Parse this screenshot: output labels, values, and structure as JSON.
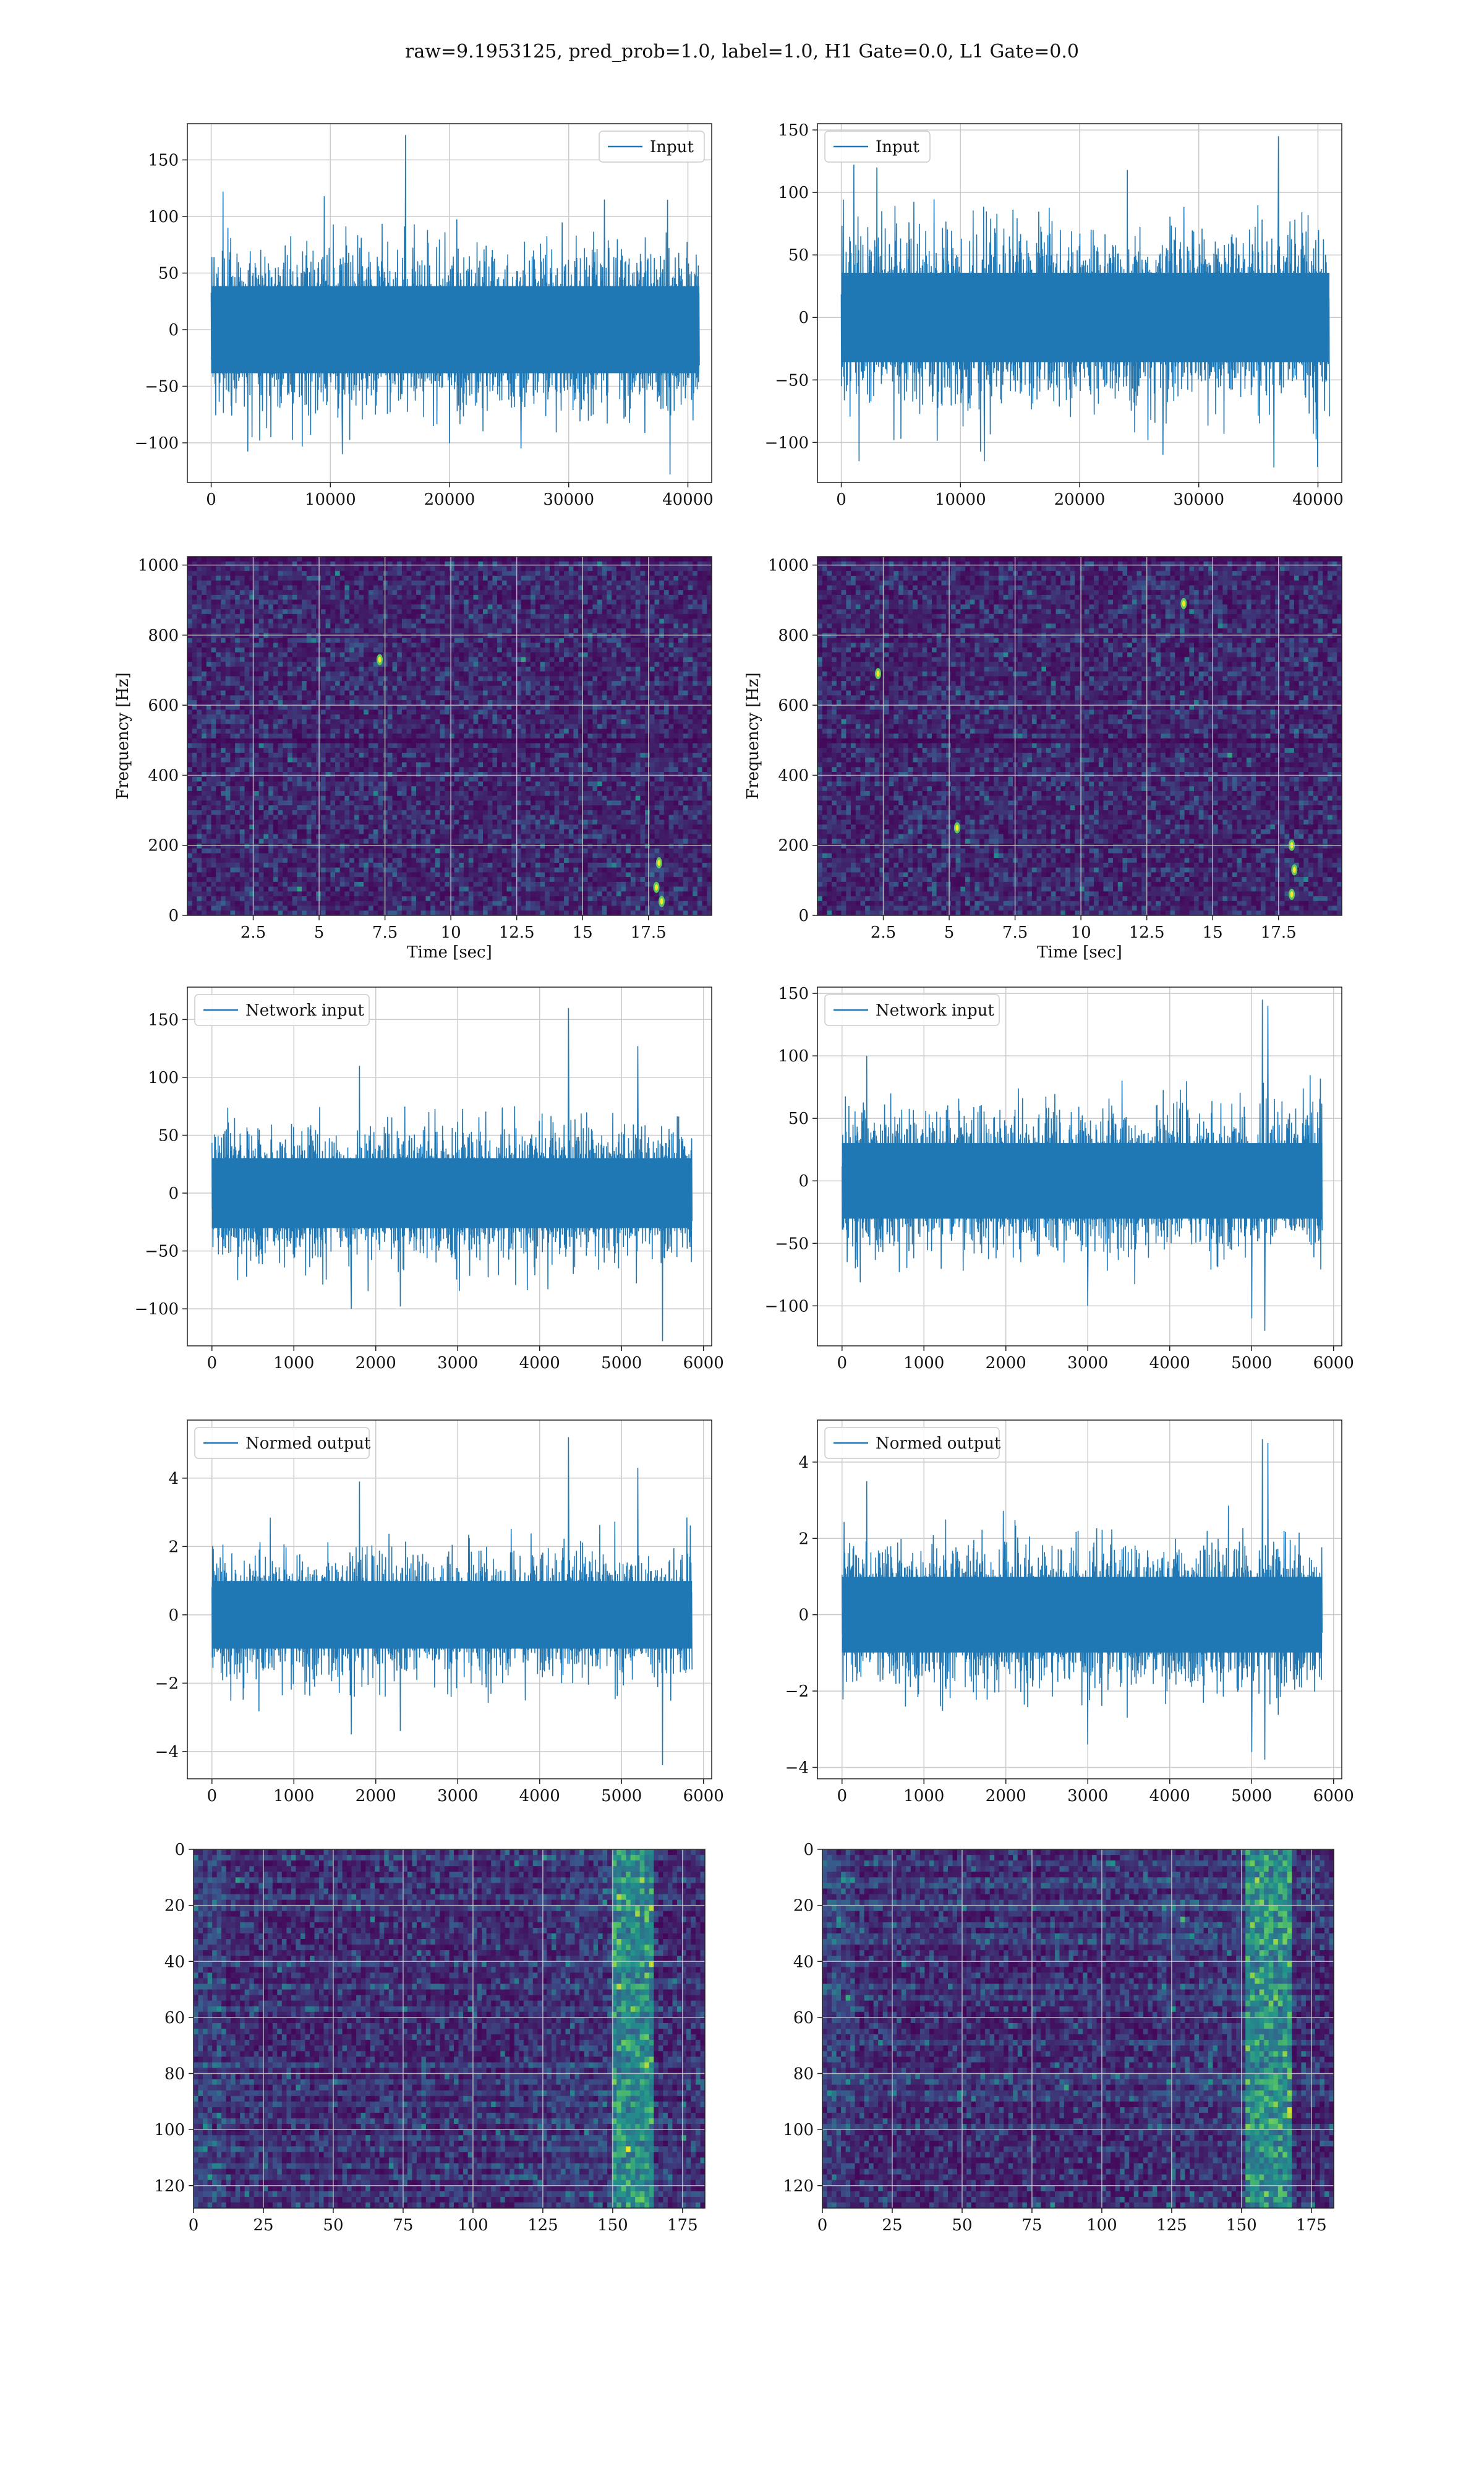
{
  "suptitle": "raw=9.1953125, pred_prob=1.0, label=1.0, H1 Gate=0.0, L1 Gate=0.0",
  "colors": {
    "line": "#1f77b4",
    "viridis_dark": "#440154",
    "viridis_mid": "#3b528b",
    "viridis_teal": "#21918c",
    "viridis_green": "#5ec962",
    "viridis_yellow": "#fde725",
    "grid": "#cccccc"
  },
  "chart_data": [
    {
      "id": "r1c1",
      "type": "line",
      "title": "",
      "xlabel": "",
      "ylabel": "",
      "legend": "Input",
      "legend_loc": "upper right",
      "xlim": [
        -2000,
        42000
      ],
      "ylim": [
        -135,
        182
      ],
      "xticks": [
        0,
        10000,
        20000,
        30000,
        40000
      ],
      "yticks": [
        -100,
        -50,
        0,
        50,
        100,
        150
      ],
      "series": [
        {
          "name": "Input",
          "x_range": [
            0,
            40960
          ],
          "typical_amplitude": 70,
          "spikes": [
            [
              16300,
              172
            ],
            [
              38500,
              -128
            ],
            [
              5000,
              -95
            ],
            [
              11000,
              -110
            ],
            [
              26000,
              -105
            ],
            [
              1000,
              122
            ],
            [
              9500,
              118
            ],
            [
              33000,
              115
            ]
          ]
        }
      ]
    },
    {
      "id": "r1c2",
      "type": "line",
      "title": "",
      "xlabel": "",
      "ylabel": "",
      "legend": "Input",
      "legend_loc": "upper left",
      "xlim": [
        -2000,
        42000
      ],
      "ylim": [
        -132,
        155
      ],
      "xticks": [
        0,
        10000,
        20000,
        30000,
        40000
      ],
      "yticks": [
        -100,
        -50,
        0,
        50,
        100,
        150
      ],
      "series": [
        {
          "name": "Input",
          "x_range": [
            0,
            40960
          ],
          "typical_amplitude": 65,
          "spikes": [
            [
              36700,
              145
            ],
            [
              36300,
              -120
            ],
            [
              1500,
              -115
            ],
            [
              12000,
              -115
            ],
            [
              27000,
              -110
            ],
            [
              3000,
              120
            ],
            [
              24000,
              118
            ]
          ]
        }
      ]
    },
    {
      "id": "r2c1",
      "type": "heatmap",
      "title": "",
      "xlabel": "Time [sec]",
      "ylabel": "Frequency [Hz]",
      "xlim": [
        0,
        19.9
      ],
      "ylim": [
        0,
        1024
      ],
      "xticks": [
        2.5,
        5.0,
        7.5,
        10.0,
        12.5,
        15.0,
        17.5
      ],
      "yticks": [
        0,
        200,
        400,
        600,
        800,
        1000
      ],
      "hot_spots": [
        [
          17.8,
          80
        ],
        [
          17.9,
          150
        ],
        [
          18.0,
          40
        ],
        [
          7.3,
          730
        ]
      ]
    },
    {
      "id": "r2c2",
      "type": "heatmap",
      "title": "",
      "xlabel": "Time [sec]",
      "ylabel": "Frequency [Hz]",
      "xlim": [
        0,
        19.9
      ],
      "ylim": [
        0,
        1024
      ],
      "xticks": [
        2.5,
        5.0,
        7.5,
        10.0,
        12.5,
        15.0,
        17.5
      ],
      "yticks": [
        0,
        200,
        400,
        600,
        800,
        1000
      ],
      "hot_spots": [
        [
          18.0,
          60
        ],
        [
          18.1,
          130
        ],
        [
          18.0,
          200
        ],
        [
          13.9,
          890
        ],
        [
          2.3,
          690
        ],
        [
          5.3,
          250
        ]
      ]
    },
    {
      "id": "r3c1",
      "type": "line",
      "title": "",
      "xlabel": "",
      "ylabel": "",
      "legend": "Network input",
      "legend_loc": "upper left",
      "xlim": [
        -300,
        6100
      ],
      "ylim": [
        -132,
        178
      ],
      "xticks": [
        0,
        1000,
        2000,
        3000,
        4000,
        5000,
        6000
      ],
      "yticks": [
        -100,
        -50,
        0,
        50,
        100,
        150
      ],
      "series": [
        {
          "name": "Network input",
          "x_range": [
            0,
            5860
          ],
          "typical_amplitude": 55,
          "spikes": [
            [
              4350,
              160
            ],
            [
              5200,
              127
            ],
            [
              5500,
              -128
            ],
            [
              1800,
              110
            ],
            [
              1700,
              -100
            ],
            [
              2300,
              -98
            ]
          ]
        }
      ]
    },
    {
      "id": "r3c2",
      "type": "line",
      "title": "",
      "xlabel": "",
      "ylabel": "",
      "legend": "Network input",
      "legend_loc": "upper left",
      "xlim": [
        -300,
        6100
      ],
      "ylim": [
        -132,
        155
      ],
      "xticks": [
        0,
        1000,
        2000,
        3000,
        4000,
        5000,
        6000
      ],
      "yticks": [
        -100,
        -50,
        0,
        50,
        100,
        150
      ],
      "series": [
        {
          "name": "Network input",
          "x_range": [
            0,
            5860
          ],
          "typical_amplitude": 55,
          "spikes": [
            [
              5130,
              145
            ],
            [
              5200,
              140
            ],
            [
              5160,
              -120
            ],
            [
              5000,
              -110
            ],
            [
              300,
              100
            ],
            [
              3000,
              -100
            ]
          ]
        }
      ]
    },
    {
      "id": "r4c1",
      "type": "line",
      "title": "",
      "xlabel": "",
      "ylabel": "",
      "legend": "Normed output",
      "legend_loc": "upper left",
      "xlim": [
        -300,
        6100
      ],
      "ylim": [
        -4.8,
        5.7
      ],
      "xticks": [
        0,
        1000,
        2000,
        3000,
        4000,
        5000,
        6000
      ],
      "yticks": [
        -4,
        -2,
        0,
        2,
        4
      ],
      "series": [
        {
          "name": "Normed output",
          "x_range": [
            0,
            5860
          ],
          "typical_amplitude": 1.8,
          "spikes": [
            [
              4350,
              5.2
            ],
            [
              5200,
              4.3
            ],
            [
              5500,
              -4.4
            ],
            [
              1800,
              3.9
            ],
            [
              1700,
              -3.5
            ],
            [
              2300,
              -3.4
            ]
          ]
        }
      ]
    },
    {
      "id": "r4c2",
      "type": "line",
      "title": "",
      "xlabel": "",
      "ylabel": "",
      "legend": "Normed output",
      "legend_loc": "upper left",
      "xlim": [
        -300,
        6100
      ],
      "ylim": [
        -4.3,
        5.1
      ],
      "xticks": [
        0,
        1000,
        2000,
        3000,
        4000,
        5000,
        6000
      ],
      "yticks": [
        -4,
        -2,
        0,
        2,
        4
      ],
      "series": [
        {
          "name": "Normed output",
          "x_range": [
            0,
            5860
          ],
          "typical_amplitude": 1.8,
          "spikes": [
            [
              5130,
              4.6
            ],
            [
              5200,
              4.5
            ],
            [
              5160,
              -3.8
            ],
            [
              5000,
              -3.6
            ],
            [
              300,
              3.5
            ],
            [
              3000,
              -3.4
            ]
          ]
        }
      ]
    },
    {
      "id": "r5c1",
      "type": "heatmap",
      "title": "",
      "xlabel": "",
      "ylabel": "",
      "xlim": [
        0,
        183
      ],
      "ylim": [
        128,
        0
      ],
      "xticks": [
        0,
        25,
        50,
        75,
        100,
        125,
        150,
        175
      ],
      "yticks": [
        0,
        20,
        40,
        60,
        80,
        100,
        120
      ],
      "hot_band": [
        150,
        165
      ]
    },
    {
      "id": "r5c2",
      "type": "heatmap",
      "title": "",
      "xlabel": "",
      "ylabel": "",
      "xlim": [
        0,
        183
      ],
      "ylim": [
        128,
        0
      ],
      "xticks": [
        0,
        25,
        50,
        75,
        100,
        125,
        150,
        175
      ],
      "yticks": [
        0,
        20,
        40,
        60,
        80,
        100,
        120
      ],
      "hot_band": [
        152,
        168
      ]
    }
  ]
}
